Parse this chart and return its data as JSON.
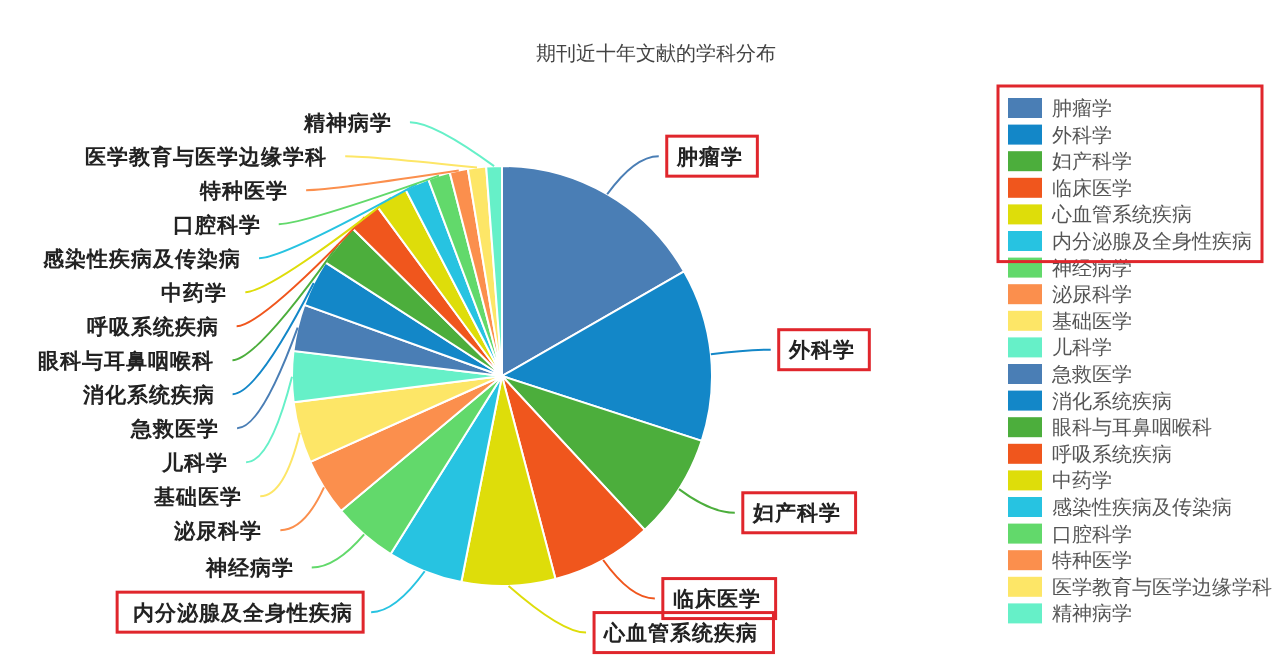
{
  "chart_data": {
    "type": "pie",
    "title": "期刊近十年文献的学科分布",
    "legend": "top right",
    "categories": [
      "肿瘤学",
      "外科学",
      "妇产科学",
      "临床医学",
      "心血管系统疾病",
      "内分泌腺及全身性疾病",
      "神经病学",
      "泌尿科学",
      "基础医学",
      "儿科学",
      "急救医学",
      "消化系统疾病",
      "眼科与耳鼻咽喉科",
      "呼吸系统疾病",
      "中药学",
      "感染性疾病及传染病",
      "口腔科学",
      "特种医学",
      "医学教育与医学边缘学科",
      "精神病学"
    ],
    "values": [
      16.7,
      13.3,
      8.1,
      7.8,
      7.2,
      5.8,
      5.0,
      4.4,
      4.7,
      3.9,
      3.6,
      3.6,
      3.3,
      2.5,
      2.5,
      1.9,
      1.7,
      1.4,
      1.4,
      1.2
    ],
    "colors": [
      "#4a7eb5",
      "#1387c8",
      "#4cae3c",
      "#f0561d",
      "#dedd0a",
      "#27c3e1",
      "#62d96b",
      "#fb8f4d",
      "#fde667",
      "#66f0c8",
      "#4a7eb5",
      "#1387c8",
      "#4cae3c",
      "#f0561d",
      "#dedd0a",
      "#27c3e1",
      "#62d96b",
      "#fb8f4d",
      "#fde667",
      "#66f0c8"
    ]
  }
}
